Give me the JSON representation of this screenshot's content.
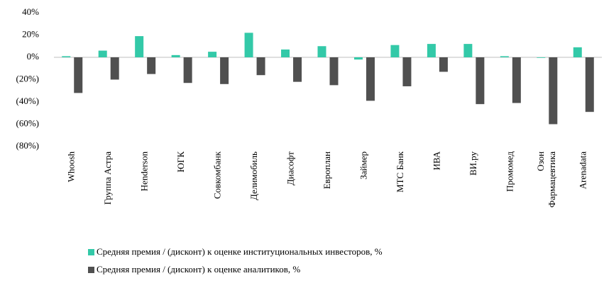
{
  "chart_data": {
    "type": "bar",
    "categories": [
      "Whoosh",
      "Группа Астра",
      "Henderson",
      "ЮГК",
      "Совкомбанк",
      "Делимобиль",
      "Диасофт",
      "Европлан",
      "Займер",
      "МТС Банк",
      "ИВА",
      "ВИ.ру",
      "Промомед",
      "Озон Фармацевтика",
      "Arenadata"
    ],
    "series": [
      {
        "name": "Средняя премия / (дисконт) к оценке институциональных инвесторов, %",
        "color": "#33c9a8",
        "values": [
          1,
          6,
          19,
          2,
          5,
          22,
          7,
          10,
          -2,
          11,
          12,
          12,
          1,
          0,
          9
        ]
      },
      {
        "name": "Средняя премия / (дисконт) к оценке аналитиков, %",
        "color": "#505050",
        "values": [
          -32,
          -20,
          -15,
          -23,
          -24,
          -16,
          -22,
          -25,
          -39,
          -26,
          -13,
          -42,
          -41,
          -60,
          -49
        ]
      }
    ],
    "ylim": [
      -80,
      40
    ],
    "yticks": [
      {
        "value": -80,
        "label": "(80%)"
      },
      {
        "value": -60,
        "label": "(60%)"
      },
      {
        "value": -40,
        "label": "(40%)"
      },
      {
        "value": -20,
        "label": "(20%)"
      },
      {
        "value": 0,
        "label": "0%"
      },
      {
        "value": 20,
        "label": "20%"
      },
      {
        "value": 40,
        "label": "40%"
      }
    ],
    "grid": false,
    "legend": "bottom"
  }
}
